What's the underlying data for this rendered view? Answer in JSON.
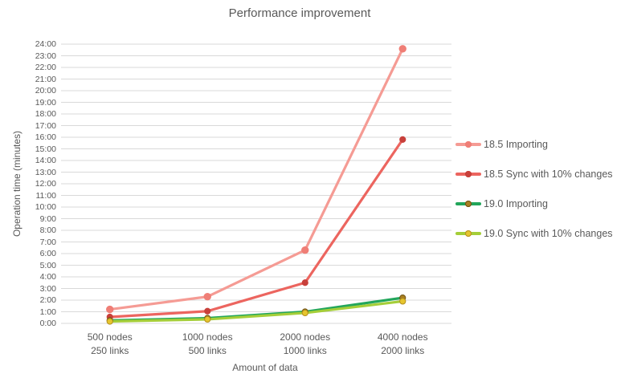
{
  "chart_data": {
    "type": "line",
    "title": "Performance improvement",
    "xlabel": "Amount of data",
    "ylabel": "Operation time (minutes)",
    "ylim": [
      0,
      24
    ],
    "grid": true,
    "legend_position": "right",
    "text_color": "#595959",
    "gridline_color": "#d9d9d9",
    "y_ticks": [
      "0:00",
      "1:00",
      "2:00",
      "3:00",
      "4:00",
      "5:00",
      "6:00",
      "7:00",
      "8:00",
      "9:00",
      "10:00",
      "11:00",
      "12:00",
      "13:00",
      "14:00",
      "15:00",
      "16:00",
      "17:00",
      "18:00",
      "19:00",
      "20:00",
      "21:00",
      "22:00",
      "23:00",
      "24:00"
    ],
    "categories": [
      "500 nodes\n250 links",
      "1000 nodes\n500 links",
      "2000 nodes\n1000 links",
      "4000 nodes\n2000 links"
    ],
    "series": [
      {
        "name": "18.5 Importing",
        "color": "#F59B94",
        "marker_color": "#EF7E76",
        "marker_stroke": "#EF7E76",
        "values": [
          1.2,
          2.3,
          6.3,
          23.6
        ]
      },
      {
        "name": "18.5 Sync with 10% changes",
        "color": "#EC655F",
        "marker_color": "#C8403B",
        "marker_stroke": "#C8403B",
        "values": [
          0.55,
          1.05,
          3.5,
          15.8
        ]
      },
      {
        "name": "19.0 Importing",
        "color": "#22A65B",
        "marker_color": "#A97F22",
        "marker_stroke": "#6E5213",
        "values": [
          0.25,
          0.45,
          1.0,
          2.2
        ]
      },
      {
        "name": "19.0 Sync with 10% changes",
        "color": "#A5CE39",
        "marker_color": "#E6C52E",
        "marker_stroke": "#B38F1D",
        "values": [
          0.17,
          0.35,
          0.9,
          1.9
        ]
      }
    ]
  }
}
